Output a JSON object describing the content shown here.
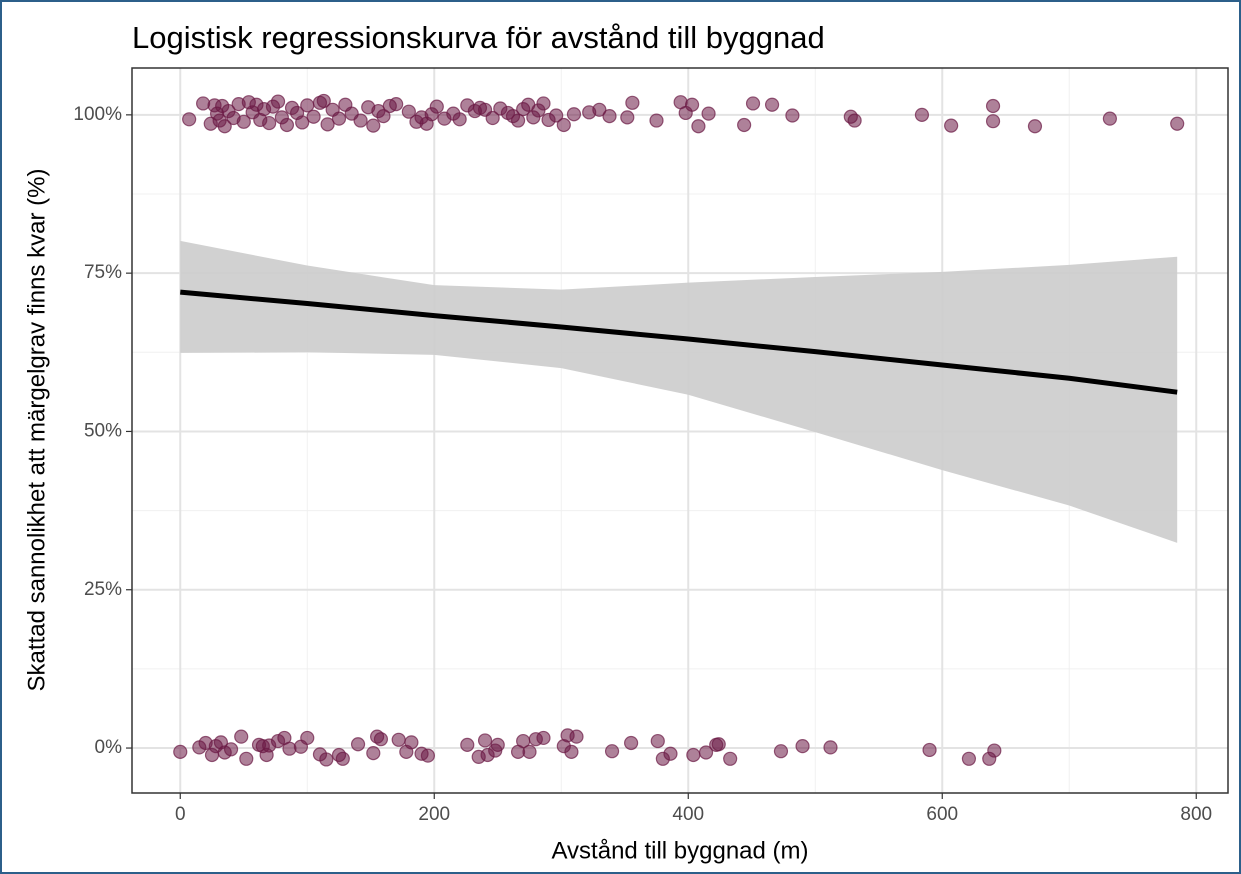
{
  "chart_data": {
    "type": "scatter",
    "title": "Logistisk regressionskurva för avstånd till byggnad",
    "x_label": "Avstånd till byggnad (m)",
    "y_label": "Skattad sannolikhet att märgelgrav finns kvar (%)",
    "xlim": [
      -38,
      825
    ],
    "ylim": [
      -7.1,
      107.4
    ],
    "xticks": [
      0,
      200,
      400,
      600,
      800
    ],
    "yticks": [
      {
        "value": 0,
        "label": "0%"
      },
      {
        "value": 25,
        "label": "25%"
      },
      {
        "value": 50,
        "label": "50%"
      },
      {
        "value": 75,
        "label": "75%"
      },
      {
        "value": 100,
        "label": "100%"
      }
    ],
    "xminor": [
      100,
      300,
      500,
      700
    ],
    "yminor": [
      12.5,
      37.5,
      62.5,
      87.5
    ],
    "grid": true,
    "points": {
      "color": "#6b1a45",
      "x": [
        7,
        18,
        24,
        27,
        29,
        31,
        33,
        35,
        38,
        42,
        46,
        50,
        54,
        57,
        60,
        63,
        66,
        70,
        73,
        77,
        80,
        84,
        88,
        92,
        96,
        100,
        105,
        110,
        113,
        116,
        120,
        125,
        130,
        135,
        142,
        148,
        152,
        156,
        160,
        165,
        170,
        180,
        186,
        190,
        194,
        198,
        202,
        208,
        215,
        220,
        226,
        232,
        236,
        240,
        246,
        252,
        258,
        262,
        266,
        270,
        274,
        278,
        282,
        286,
        290,
        296,
        302,
        310,
        322,
        330,
        338,
        352,
        356,
        375,
        394,
        398,
        403,
        408,
        416,
        444,
        451,
        466,
        482,
        528,
        531,
        584,
        607,
        640,
        640,
        673,
        732,
        785,
        0,
        15,
        20,
        25,
        28,
        32,
        35,
        40,
        48,
        52,
        62,
        65,
        68,
        70,
        77,
        82,
        86,
        95,
        100,
        110,
        115,
        125,
        128,
        140,
        152,
        155,
        158,
        172,
        178,
        182,
        190,
        195,
        226,
        235,
        240,
        242,
        248,
        250,
        266,
        270,
        275,
        280,
        286,
        302,
        305,
        308,
        312,
        340,
        355,
        376,
        380,
        386,
        404,
        414,
        422,
        424,
        433,
        473,
        490,
        512,
        590,
        621,
        637,
        641
      ],
      "y": [
        99.3,
        101.8,
        98.6,
        101.5,
        100.2,
        99.1,
        101.4,
        98.2,
        100.6,
        99.5,
        101.7,
        98.9,
        102,
        100.4,
        101.6,
        99.2,
        100.9,
        98.7,
        101.3,
        102.1,
        99.6,
        98.4,
        101.1,
        100.3,
        98.8,
        101.5,
        99.7,
        101.9,
        102.2,
        98.5,
        100.8,
        99.4,
        101.6,
        100.2,
        99.1,
        101.2,
        98.3,
        100.6,
        99.8,
        101.4,
        101.7,
        100.5,
        98.9,
        99.6,
        98.6,
        100.1,
        101.3,
        99.4,
        100.2,
        99.3,
        101.5,
        100.6,
        101.1,
        100.8,
        99.5,
        101,
        100.3,
        99.8,
        99.1,
        100.9,
        101.6,
        99.6,
        100.7,
        101.8,
        99.2,
        99.9,
        98.4,
        100.1,
        100.4,
        100.8,
        99.8,
        99.6,
        101.9,
        99.1,
        102,
        100.3,
        101.6,
        98.2,
        100.2,
        98.4,
        101.8,
        101.6,
        99.9,
        99.7,
        99.1,
        100,
        98.3,
        101.4,
        99,
        98.2,
        99.4,
        98.6,
        -0.6,
        0.1,
        0.8,
        -1.1,
        0.3,
        0.9,
        -0.7,
        -0.2,
        1.8,
        -1.7,
        0.5,
        0.3,
        -1.1,
        0.4,
        1.1,
        1.6,
        -0.1,
        0.2,
        1.6,
        -1,
        -1.8,
        -1.1,
        -1.7,
        0.6,
        -0.8,
        1.8,
        1.4,
        1.3,
        -0.6,
        0.9,
        -0.9,
        -1.2,
        0.5,
        -1.4,
        1.2,
        -1.1,
        -0.4,
        0.5,
        -0.6,
        1.1,
        -0.6,
        1.4,
        1.6,
        0.3,
        2,
        -0.6,
        1.8,
        -0.5,
        0.8,
        1.1,
        -1.7,
        -0.9,
        -1.1,
        -0.7,
        0.5,
        0.6,
        -1.7,
        -0.5,
        0.3,
        0.1,
        -0.3,
        -1.7,
        -1.7,
        -0.4
      ]
    },
    "fit": {
      "color": "#000000",
      "x": [
        0,
        100,
        200,
        300,
        400,
        500,
        600,
        700,
        785
      ],
      "y": [
        72,
        70.2,
        68.3,
        66.5,
        64.6,
        62.6,
        60.5,
        58.4,
        56.2
      ]
    },
    "band": {
      "color": "#cccccc",
      "x": [
        0,
        100,
        200,
        300,
        400,
        500,
        600,
        700,
        785
      ],
      "lower": [
        62.4,
        62.5,
        62.1,
        60,
        55.8,
        49.9,
        43.9,
        38.3,
        32.4
      ],
      "upper": [
        80.1,
        76.2,
        73.1,
        72.4,
        73.5,
        74.4,
        75.2,
        76.3,
        77.6
      ]
    }
  }
}
